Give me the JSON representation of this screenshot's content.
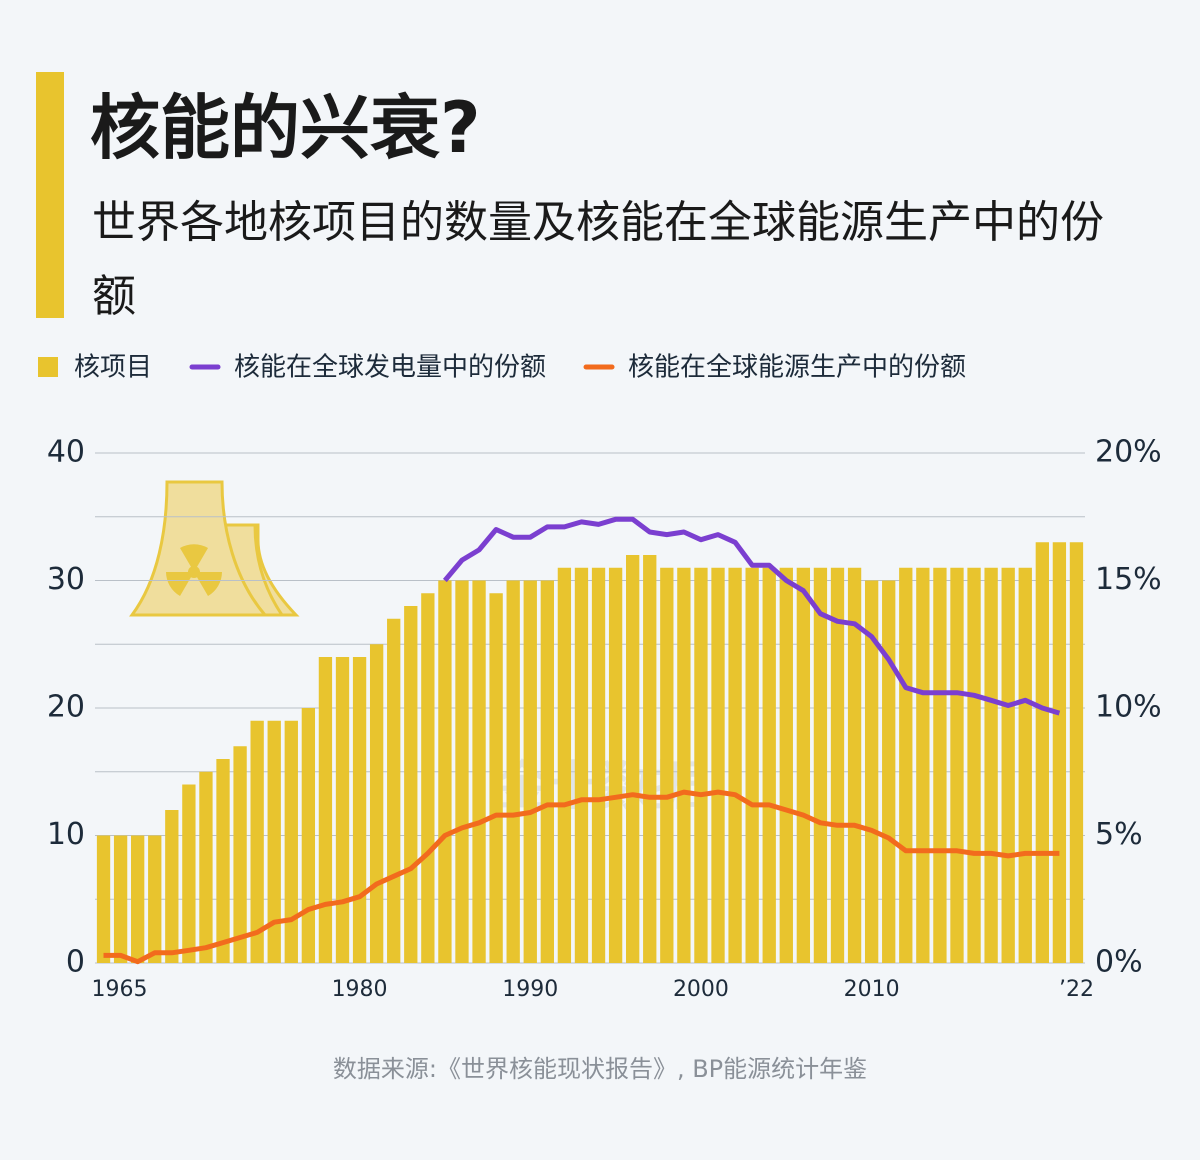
{
  "chart_data": {
    "type": "bar-line",
    "title": "核能的兴衰?",
    "subtitle": "世界各地核项目的数量及核能在全球能源生产中的份额",
    "source": "数据来源:《世界核能现状报告》, BP能源统计年鉴",
    "watermark": "金十数据",
    "categories": [
      "1965",
      null,
      null,
      null,
      null,
      null,
      null,
      null,
      null,
      null,
      null,
      null,
      null,
      null,
      null,
      "1980",
      null,
      null,
      null,
      null,
      null,
      null,
      null,
      null,
      null,
      "1990",
      null,
      null,
      null,
      null,
      null,
      null,
      null,
      null,
      null,
      "2000",
      null,
      null,
      null,
      null,
      null,
      null,
      null,
      null,
      null,
      "2010",
      null,
      null,
      null,
      null,
      null,
      null,
      null,
      null,
      null,
      null,
      null,
      "’22"
    ],
    "series": [
      {
        "name": "核项目",
        "color": "#e8c42e",
        "kind": "bar",
        "values": [
          10,
          10,
          10,
          10,
          12,
          14,
          15,
          16,
          17,
          19,
          19,
          19,
          20,
          24,
          24,
          24,
          25,
          27,
          28,
          29,
          30,
          30,
          30,
          29,
          30,
          30,
          30,
          31,
          31,
          31,
          31,
          32,
          32,
          31,
          31,
          31,
          31,
          31,
          31,
          31,
          31,
          31,
          31,
          31,
          31,
          30,
          30,
          31,
          31,
          31,
          31,
          31,
          31,
          31,
          31,
          33,
          33,
          33
        ]
      },
      {
        "name": "核能在全球发电量中的份额",
        "color": "#7b3fd0",
        "kind": "line",
        "axis": "y2",
        "values": [
          null,
          null,
          null,
          null,
          null,
          null,
          null,
          null,
          null,
          null,
          null,
          null,
          null,
          null,
          null,
          null,
          null,
          null,
          null,
          null,
          15.0,
          15.8,
          16.2,
          17.0,
          16.7,
          16.7,
          17.1,
          17.1,
          17.3,
          17.2,
          17.4,
          17.4,
          16.9,
          16.8,
          16.9,
          16.6,
          16.8,
          16.5,
          15.6,
          15.6,
          15.0,
          14.6,
          13.7,
          13.4,
          13.3,
          12.8,
          11.9,
          10.8,
          10.6,
          10.6,
          10.6,
          10.5,
          10.3,
          10.1,
          10.3,
          10.0,
          9.8,
          null
        ]
      },
      {
        "name": "核能在全球能源生产中的份额",
        "color": "#f26b1d",
        "kind": "line",
        "axis": "y2",
        "values": [
          0.3,
          0.3,
          0.05,
          0.4,
          0.4,
          0.5,
          0.6,
          0.8,
          1.0,
          1.2,
          1.6,
          1.7,
          2.1,
          2.3,
          2.4,
          2.6,
          3.1,
          3.4,
          3.7,
          4.3,
          5.0,
          5.3,
          5.5,
          5.8,
          5.8,
          5.9,
          6.2,
          6.2,
          6.4,
          6.4,
          6.5,
          6.6,
          6.5,
          6.5,
          6.7,
          6.6,
          6.7,
          6.6,
          6.2,
          6.2,
          6.0,
          5.8,
          5.5,
          5.4,
          5.4,
          5.2,
          4.9,
          4.4,
          4.4,
          4.4,
          4.4,
          4.3,
          4.3,
          4.2,
          4.3,
          4.3,
          4.3,
          null
        ]
      }
    ],
    "ylim": [
      0,
      40
    ],
    "yticks": [
      0,
      10,
      20,
      30,
      40
    ],
    "y_minor_ticks": [
      5,
      15,
      25,
      35
    ],
    "y2lim": [
      0,
      20
    ],
    "y2ticks": [
      {
        "value": 0,
        "label": "0%"
      },
      {
        "value": 5,
        "label": "5%"
      },
      {
        "value": 10,
        "label": "10%"
      },
      {
        "value": 15,
        "label": "15%"
      },
      {
        "value": 20,
        "label": "20%"
      }
    ],
    "grid": true
  }
}
